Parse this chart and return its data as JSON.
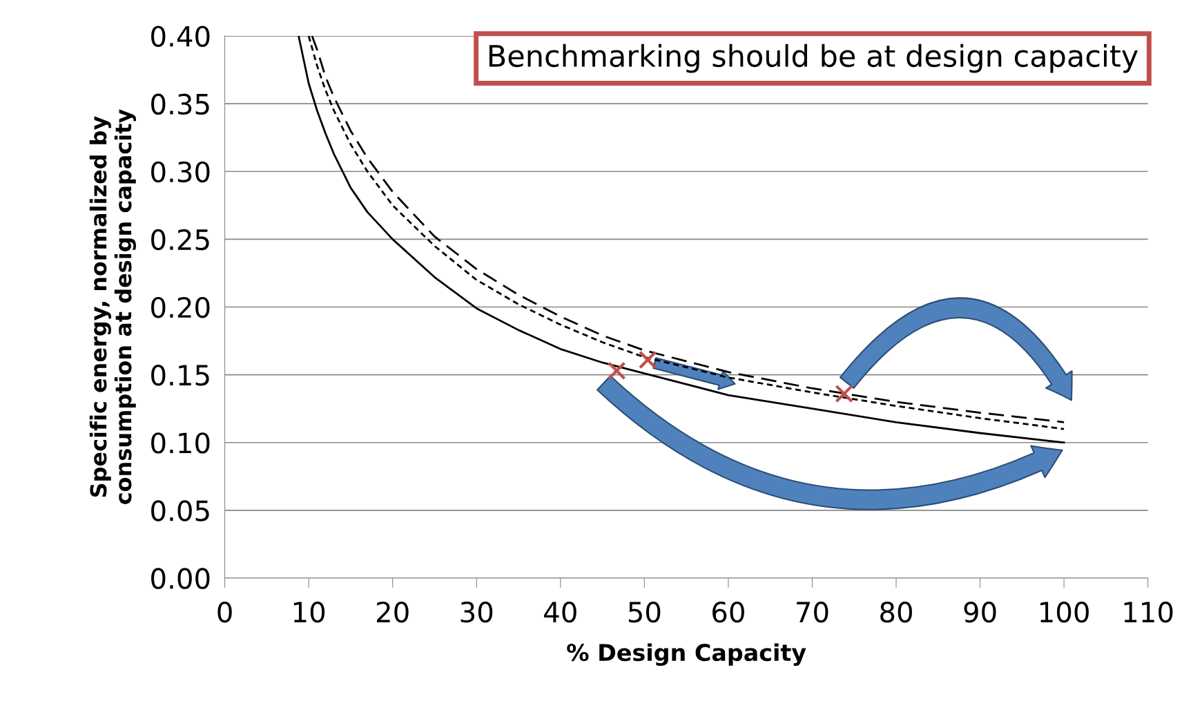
{
  "chart_data": {
    "type": "line",
    "xlabel": "% Design Capacity",
    "ylabel": "Specific energy, normalized by\nconsumption at design capacity",
    "annotations": [
      "Benchmarking should be at design capacity"
    ],
    "series": [
      {
        "color": "#000000",
        "line_style": "solid",
        "x": [
          8.8,
          10,
          11,
          12,
          13,
          15,
          17,
          20,
          25,
          30,
          35,
          40,
          45,
          50,
          60,
          70,
          80,
          90,
          100
        ],
        "values": [
          0.4,
          0.365,
          0.345,
          0.328,
          0.313,
          0.288,
          0.27,
          0.25,
          0.222,
          0.199,
          0.183,
          0.169,
          0.159,
          0.151,
          0.135,
          0.125,
          0.115,
          0.107,
          0.1
        ]
      },
      {
        "color": "#000000",
        "line_style": "dotted",
        "x": [
          10,
          11,
          12,
          13,
          15,
          17,
          20,
          25,
          30,
          35,
          40,
          45,
          50,
          60,
          70,
          80,
          90,
          100
        ],
        "values": [
          0.4,
          0.378,
          0.36,
          0.345,
          0.32,
          0.3,
          0.275,
          0.245,
          0.22,
          0.202,
          0.187,
          0.174,
          0.163,
          0.148,
          0.137,
          0.127,
          0.118,
          0.11
        ]
      },
      {
        "color": "#000000",
        "line_style": "dashed",
        "x": [
          10.4,
          11,
          12,
          13,
          15,
          17,
          20,
          25,
          30,
          35,
          40,
          45,
          50,
          60,
          70,
          80,
          90,
          100
        ],
        "values": [
          0.4,
          0.39,
          0.37,
          0.355,
          0.33,
          0.31,
          0.285,
          0.252,
          0.228,
          0.209,
          0.193,
          0.179,
          0.168,
          0.152,
          0.14,
          0.13,
          0.122,
          0.115
        ]
      },
      {
        "type": "scatter",
        "color": "#c0504d",
        "marker": "cross",
        "x": [
          46.7,
          50.4,
          73.8
        ],
        "values": [
          0.153,
          0.161,
          0.136
        ]
      }
    ],
    "xlim": [
      0,
      110
    ],
    "xticks": [
      0,
      10,
      20,
      30,
      40,
      50,
      60,
      70,
      80,
      90,
      100,
      110
    ],
    "ylim": [
      0,
      0.4
    ],
    "yticks": [
      {
        "value": 0,
        "label": "0.00"
      },
      {
        "value": 0.05,
        "label": "0.05"
      },
      {
        "value": 0.1,
        "label": "0.10"
      },
      {
        "value": 0.15,
        "label": "0.15"
      },
      {
        "value": 0.2,
        "label": "0.20"
      },
      {
        "value": 0.25,
        "label": "0.25"
      },
      {
        "value": 0.3,
        "label": "0.30"
      },
      {
        "value": 0.35,
        "label": "0.35"
      },
      {
        "value": 0.4,
        "label": "0.40"
      }
    ],
    "grid": "y"
  }
}
